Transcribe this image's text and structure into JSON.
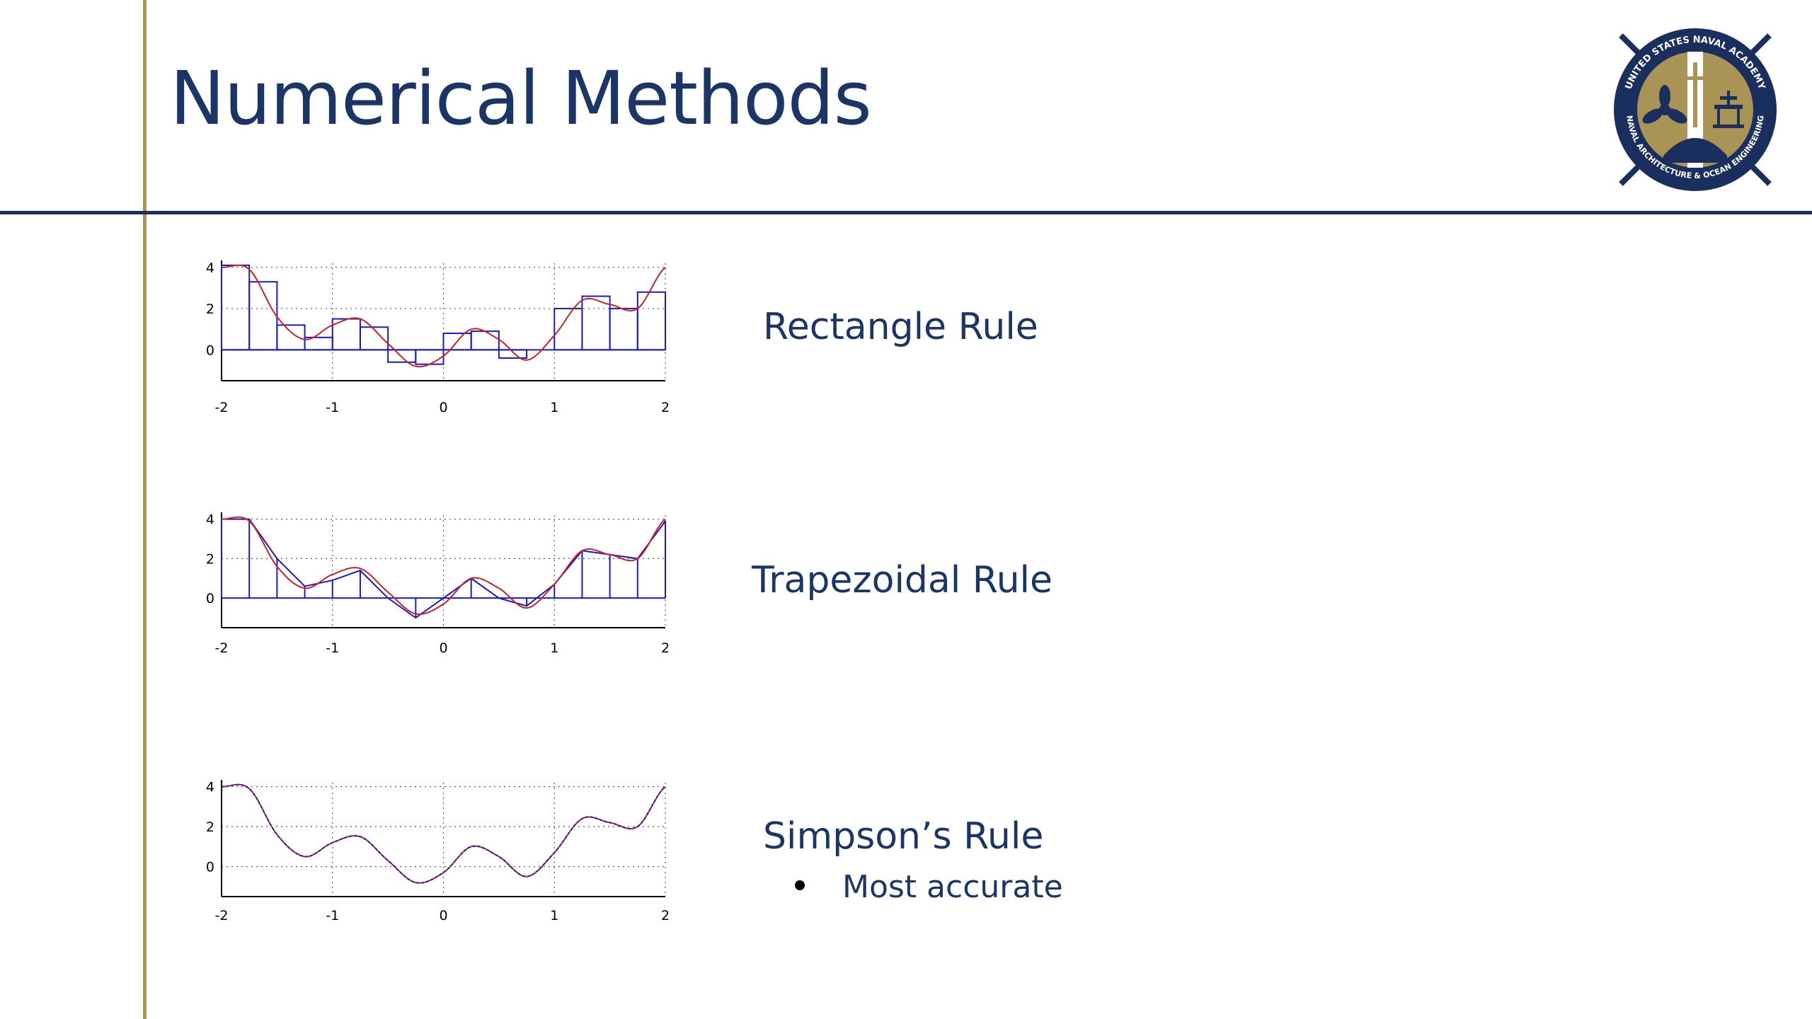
{
  "slide": {
    "title": "Numerical Methods",
    "logo": {
      "name": "usna-naval-architecture-ocean-engineering-seal",
      "text_top": "UNITED STATES NAVAL ACADEMY",
      "text_bottom": "NAVAL ARCHITECTURE & OCEAN ENGINEERING"
    }
  },
  "methods": [
    {
      "label": "Rectangle Rule",
      "bullets": []
    },
    {
      "label": "Trapezoidal Rule",
      "bullets": []
    },
    {
      "label": "Simpson’s Rule",
      "bullets": [
        "Most accurate"
      ]
    }
  ],
  "colors": {
    "navy": "#1b2f5e",
    "gold": "#a99355",
    "function_curve": "#d22020",
    "approximation": "#1a1acc"
  },
  "chart_data": [
    {
      "type": "bar",
      "method": "rectangle",
      "xlim": [
        -2,
        2
      ],
      "ylim": [
        -1.5,
        4.2
      ],
      "xticks": [
        "-2",
        "-1",
        "0",
        "1",
        "2"
      ],
      "yticks": [
        "4",
        "2",
        "0"
      ],
      "grid": true,
      "interval_edges": [
        -2,
        -1.75,
        -1.5,
        -1.25,
        -1,
        -0.75,
        -0.5,
        -0.25,
        0,
        0.25,
        0.5,
        0.75,
        1,
        1.25,
        1.5,
        1.75,
        2
      ],
      "rect_heights": [
        4.1,
        3.3,
        1.2,
        0.6,
        1.5,
        1.1,
        -0.6,
        -0.7,
        0.8,
        0.9,
        -0.4,
        0.0,
        2.0,
        2.6,
        2.0,
        2.8
      ],
      "curve_x": [
        -2,
        -1.75,
        -1.5,
        -1.25,
        -1,
        -0.75,
        -0.5,
        -0.25,
        0,
        0.25,
        0.5,
        0.75,
        1,
        1.25,
        1.5,
        1.75,
        2
      ],
      "curve_y": [
        4.0,
        3.9,
        1.6,
        0.5,
        1.2,
        1.5,
        0.3,
        -0.8,
        -0.3,
        1.0,
        0.5,
        -0.5,
        0.7,
        2.4,
        2.2,
        2.0,
        4.0
      ]
    },
    {
      "type": "area",
      "method": "trapezoidal",
      "xlim": [
        -2,
        2
      ],
      "ylim": [
        -1.5,
        4.2
      ],
      "xticks": [
        "-2",
        "-1",
        "0",
        "1",
        "2"
      ],
      "yticks": [
        "4",
        "2",
        "0"
      ],
      "grid": true,
      "interval_edges": [
        -2,
        -1.75,
        -1.5,
        -1.25,
        -1,
        -0.75,
        -0.5,
        -0.25,
        0,
        0.25,
        0.5,
        0.75,
        1,
        1.25,
        1.5,
        1.75,
        2
      ],
      "node_values": [
        4.0,
        4.0,
        2.0,
        0.6,
        0.9,
        1.4,
        0.0,
        -1.0,
        0.0,
        1.0,
        0.0,
        -0.4,
        0.7,
        2.4,
        2.2,
        2.0,
        3.9
      ],
      "curve_x": [
        -2,
        -1.75,
        -1.5,
        -1.25,
        -1,
        -0.75,
        -0.5,
        -0.25,
        0,
        0.25,
        0.5,
        0.75,
        1,
        1.25,
        1.5,
        1.75,
        2
      ],
      "curve_y": [
        4.0,
        3.9,
        1.6,
        0.5,
        1.2,
        1.5,
        0.3,
        -0.8,
        -0.3,
        1.0,
        0.5,
        -0.5,
        0.7,
        2.4,
        2.2,
        2.0,
        4.0
      ]
    },
    {
      "type": "line",
      "method": "simpson",
      "xlim": [
        -2,
        2
      ],
      "ylim": [
        -1.5,
        4.2
      ],
      "xticks": [
        "-2",
        "-1",
        "0",
        "1",
        "2"
      ],
      "yticks": [
        "4",
        "2",
        "0"
      ],
      "grid": true,
      "curve_x": [
        -2,
        -1.75,
        -1.5,
        -1.25,
        -1,
        -0.75,
        -0.5,
        -0.25,
        0,
        0.25,
        0.5,
        0.75,
        1,
        1.25,
        1.5,
        1.75,
        2
      ],
      "curve_y": [
        4.0,
        3.9,
        1.6,
        0.5,
        1.2,
        1.5,
        0.3,
        -0.8,
        -0.3,
        1.0,
        0.5,
        -0.5,
        0.7,
        2.4,
        2.2,
        2.0,
        4.0
      ]
    }
  ]
}
